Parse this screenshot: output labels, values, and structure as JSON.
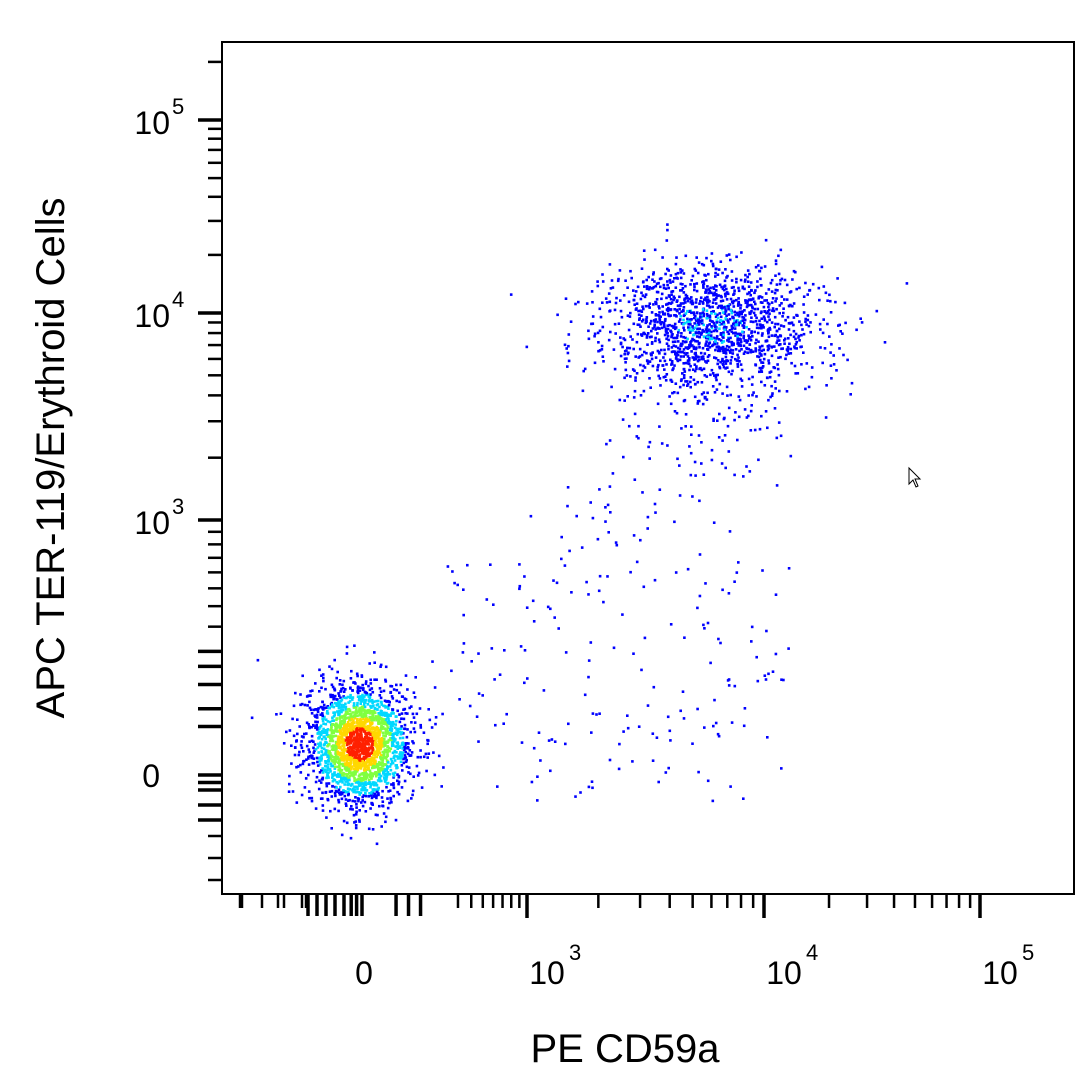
{
  "chart_data": {
    "type": "scatter",
    "style": "flow-cytometry density dot plot",
    "xlabel": "PE  CD59a",
    "ylabel": "APC TER-119/Erythroid Cells",
    "x_scale": "biexponential (linear near 0, log above)",
    "y_scale": "biexponential (linear near 0, log above)",
    "xlim": [
      -300,
      180000
    ],
    "ylim": [
      -150,
      250000
    ],
    "x_ticks": [
      {
        "value": 0,
        "base": "0",
        "exp": ""
      },
      {
        "value": 1000,
        "base": "10",
        "exp": "3"
      },
      {
        "value": 10000,
        "base": "10",
        "exp": "4"
      },
      {
        "value": 100000,
        "base": "10",
        "exp": "5"
      }
    ],
    "y_ticks": [
      {
        "value": 0,
        "base": "0",
        "exp": ""
      },
      {
        "value": 1000,
        "base": "10",
        "exp": "3"
      },
      {
        "value": 10000,
        "base": "10",
        "exp": "4"
      },
      {
        "value": 100000,
        "base": "10",
        "exp": "5"
      }
    ],
    "populations": [
      {
        "name": "",
        "center": [
          -20,
          10
        ],
        "approx_events": 2300,
        "peak_density": "high"
      },
      {
        "name": "",
        "center": [
          6000,
          9000
        ],
        "approx_events": 1600,
        "peak_density": "medium"
      },
      {
        "name": "",
        "center": [
          1200,
          150
        ],
        "approx_events": 160,
        "peak_density": "low"
      }
    ],
    "density_colors": [
      "#0000ff",
      "#00d8ff",
      "#80ff40",
      "#ffd800",
      "#ff2000"
    ],
    "grid": false,
    "legend": "none"
  },
  "cursor": {
    "icon": "mouse-pointer-icon"
  }
}
